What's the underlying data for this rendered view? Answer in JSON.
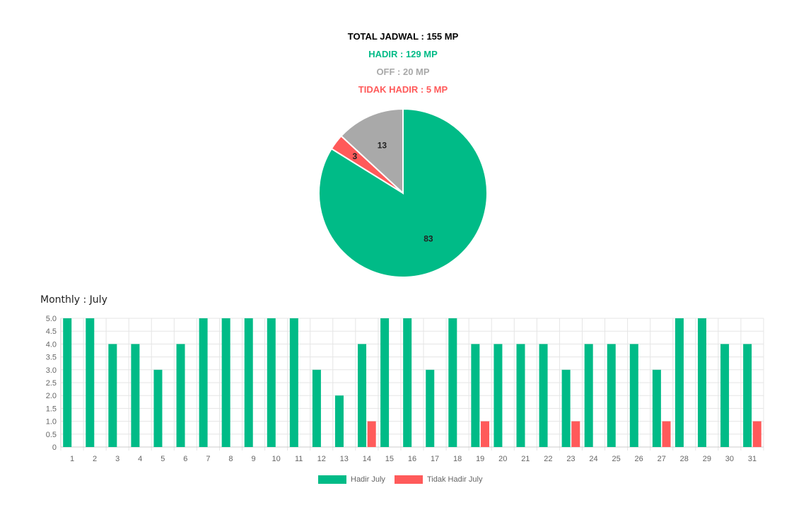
{
  "summary": {
    "total": "TOTAL JADWAL : 155 MP",
    "hadir": "HADIR : 129 MP",
    "off": "OFF : 20 MP",
    "tidak_hadir": "TIDAK HADIR : 5 MP"
  },
  "colors": {
    "hadir": "#00bb87",
    "tidak_hadir": "#ff5a5a",
    "off": "#a9a9a9"
  },
  "monthly_title": "Monthly : July",
  "chart_data": [
    {
      "type": "pie",
      "slices": [
        {
          "label": "Hadir",
          "value": 83,
          "color": "#00bb87"
        },
        {
          "label": "Tidak Hadir",
          "value": 3,
          "color": "#ff5a5a"
        },
        {
          "label": "Off",
          "value": 13,
          "color": "#a9a9a9"
        }
      ],
      "data_labels": [
        "83",
        "3",
        "13"
      ]
    },
    {
      "type": "bar",
      "categories": [
        "1",
        "2",
        "3",
        "4",
        "5",
        "6",
        "7",
        "8",
        "9",
        "10",
        "11",
        "12",
        "13",
        "14",
        "15",
        "16",
        "17",
        "18",
        "19",
        "20",
        "21",
        "22",
        "23",
        "24",
        "25",
        "26",
        "27",
        "28",
        "29",
        "30",
        "31"
      ],
      "series": [
        {
          "name": "Hadir July",
          "color": "#00bb87",
          "values": [
            5,
            5,
            4,
            4,
            3,
            4,
            5,
            5,
            5,
            5,
            5,
            3,
            2,
            4,
            5,
            5,
            3,
            5,
            4,
            4,
            4,
            4,
            3,
            4,
            4,
            4,
            3,
            5,
            5,
            4,
            4
          ]
        },
        {
          "name": "Tidak Hadir July",
          "color": "#ff5a5a",
          "values": [
            0,
            0,
            0,
            0,
            0,
            0,
            0,
            0,
            0,
            0,
            0,
            0,
            0,
            1,
            0,
            0,
            0,
            0,
            1,
            0,
            0,
            0,
            1,
            0,
            0,
            0,
            1,
            0,
            0,
            0,
            1
          ]
        }
      ],
      "yticks": [
        "0",
        "0.5",
        "1.0",
        "1.5",
        "2.0",
        "2.5",
        "3.0",
        "3.5",
        "4.0",
        "4.5",
        "5.0"
      ],
      "ylim": [
        0,
        5
      ],
      "grid": true,
      "legend": "bottom-center"
    }
  ]
}
